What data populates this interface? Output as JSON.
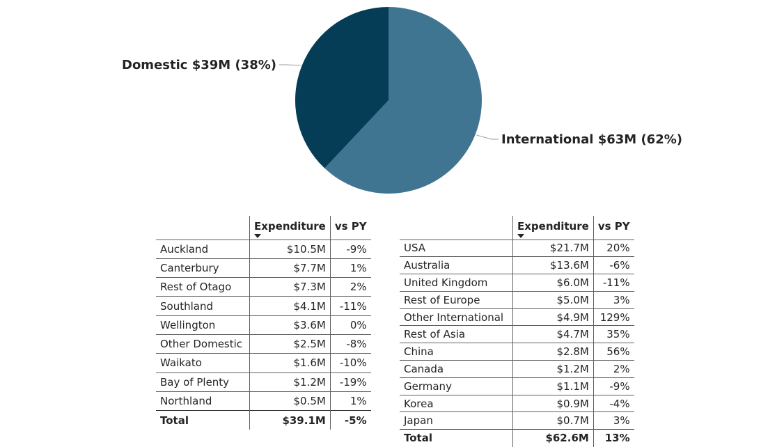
{
  "chart_data": {
    "type": "pie",
    "slices": [
      {
        "name": "International",
        "value": 63,
        "percent": 62,
        "label": "International $63M (62%)",
        "color": "#3f7590"
      },
      {
        "name": "Domestic",
        "value": 39,
        "percent": 38,
        "label": "Domestic $39M (38%)",
        "color": "#043d55"
      }
    ]
  },
  "tables": {
    "domestic": {
      "headers": {
        "name": "",
        "value": "Expenditure",
        "change": "vs PY"
      },
      "rows": [
        {
          "name": "Auckland",
          "value": "$10.5M",
          "change": "-9%"
        },
        {
          "name": "Canterbury",
          "value": "$7.7M",
          "change": "1%"
        },
        {
          "name": "Rest of Otago",
          "value": "$7.3M",
          "change": "2%"
        },
        {
          "name": "Southland",
          "value": "$4.1M",
          "change": "-11%"
        },
        {
          "name": "Wellington",
          "value": "$3.6M",
          "change": "0%"
        },
        {
          "name": "Other Domestic",
          "value": "$2.5M",
          "change": "-8%"
        },
        {
          "name": "Waikato",
          "value": "$1.6M",
          "change": "-10%"
        },
        {
          "name": "Bay of Plenty",
          "value": "$1.2M",
          "change": "-19%"
        },
        {
          "name": "Northland",
          "value": "$0.5M",
          "change": "1%"
        }
      ],
      "total": {
        "name": "Total",
        "value": "$39.1M",
        "change": "-5%"
      }
    },
    "international": {
      "headers": {
        "name": "",
        "value": "Expenditure",
        "change": "vs PY"
      },
      "rows": [
        {
          "name": "USA",
          "value": "$21.7M",
          "change": "20%"
        },
        {
          "name": "Australia",
          "value": "$13.6M",
          "change": "-6%"
        },
        {
          "name": "United Kingdom",
          "value": "$6.0M",
          "change": "-11%"
        },
        {
          "name": "Rest of Europe",
          "value": "$5.0M",
          "change": "3%"
        },
        {
          "name": "Other International",
          "value": "$4.9M",
          "change": "129%"
        },
        {
          "name": "Rest of Asia",
          "value": "$4.7M",
          "change": "35%"
        },
        {
          "name": "China",
          "value": "$2.8M",
          "change": "56%"
        },
        {
          "name": "Canada",
          "value": "$1.2M",
          "change": "2%"
        },
        {
          "name": "Germany",
          "value": "$1.1M",
          "change": "-9%"
        },
        {
          "name": "Korea",
          "value": "$0.9M",
          "change": "-4%"
        },
        {
          "name": "Japan",
          "value": "$0.7M",
          "change": "3%"
        }
      ],
      "total": {
        "name": "Total",
        "value": "$62.6M",
        "change": "13%"
      }
    }
  }
}
